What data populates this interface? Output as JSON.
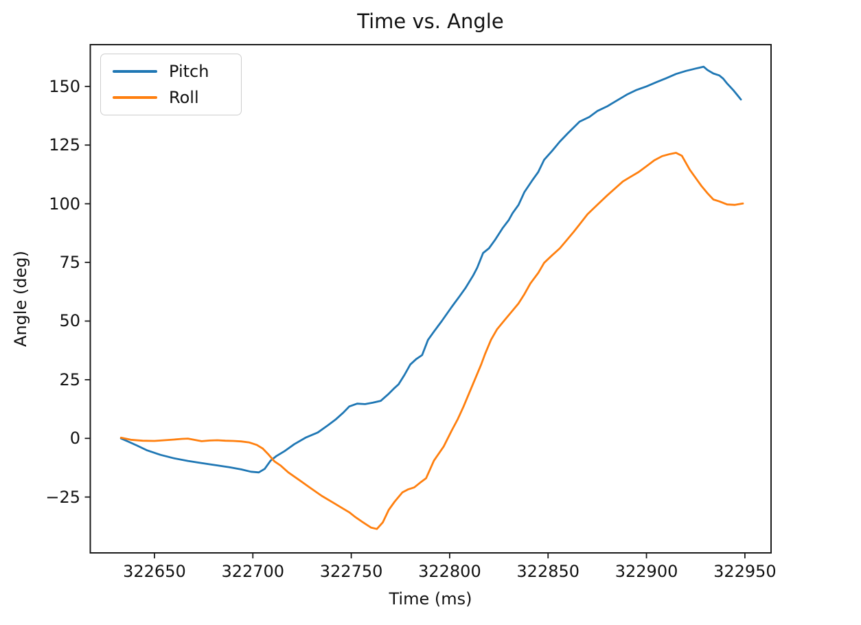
{
  "chart_data": {
    "type": "line",
    "title": "Time vs. Angle",
    "xlabel": "Time (ms)",
    "ylabel": "Angle (deg)",
    "xlim": [
      322617.4,
      322963.3
    ],
    "ylim": [
      -48.8,
      167.8
    ],
    "grid": false,
    "legend_position": "upper left",
    "colors": {
      "spine": "#1a1a1a",
      "background": "#ffffff",
      "pitch": "#1f77b4",
      "roll": "#ff7f0e"
    },
    "x_ticks": [
      {
        "value": 322650,
        "label": "322650"
      },
      {
        "value": 322700,
        "label": "322700"
      },
      {
        "value": 322750,
        "label": "322750"
      },
      {
        "value": 322800,
        "label": "322800"
      },
      {
        "value": 322850,
        "label": "322850"
      },
      {
        "value": 322900,
        "label": "322900"
      },
      {
        "value": 322950,
        "label": "322950"
      }
    ],
    "y_ticks": [
      {
        "value": -25,
        "label": "−25"
      },
      {
        "value": 0,
        "label": "0"
      },
      {
        "value": 25,
        "label": "25"
      },
      {
        "value": 50,
        "label": "50"
      },
      {
        "value": 75,
        "label": "75"
      },
      {
        "value": 100,
        "label": "100"
      },
      {
        "value": 125,
        "label": "125"
      },
      {
        "value": 150,
        "label": "150"
      }
    ],
    "series": [
      {
        "name": "Pitch",
        "color": "#1f77b4",
        "points": [
          [
            322633,
            0
          ],
          [
            322637,
            -1.5
          ],
          [
            322641,
            -3
          ],
          [
            322646,
            -5
          ],
          [
            322653,
            -7
          ],
          [
            322660,
            -8.5
          ],
          [
            322667,
            -9.6
          ],
          [
            322674,
            -10.5
          ],
          [
            322681,
            -11.4
          ],
          [
            322688,
            -12.3
          ],
          [
            322694,
            -13.2
          ],
          [
            322699,
            -14.2
          ],
          [
            322703,
            -14.5
          ],
          [
            322706,
            -13
          ],
          [
            322709,
            -9.5
          ],
          [
            322712,
            -7.5
          ],
          [
            322716,
            -5.5
          ],
          [
            322721,
            -2.5
          ],
          [
            322727,
            0.4
          ],
          [
            322733,
            2.5
          ],
          [
            322738,
            5.5
          ],
          [
            322742,
            8
          ],
          [
            322746,
            11
          ],
          [
            322749,
            13.6
          ],
          [
            322753,
            14.8
          ],
          [
            322757,
            14.6
          ],
          [
            322761,
            15.2
          ],
          [
            322765,
            16
          ],
          [
            322769,
            19
          ],
          [
            322772,
            21.5
          ],
          [
            322774,
            23
          ],
          [
            322777,
            27
          ],
          [
            322780,
            31.5
          ],
          [
            322783,
            33.8
          ],
          [
            322786,
            35.5
          ],
          [
            322789,
            42
          ],
          [
            322792,
            45.5
          ],
          [
            322796,
            50
          ],
          [
            322801,
            56
          ],
          [
            322805,
            60.5
          ],
          [
            322808,
            64
          ],
          [
            322812,
            69.5
          ],
          [
            322814,
            72.7
          ],
          [
            322817,
            79
          ],
          [
            322820,
            81
          ],
          [
            322823,
            84.5
          ],
          [
            322827,
            89.7
          ],
          [
            322830,
            93
          ],
          [
            322832,
            96
          ],
          [
            322835,
            99.5
          ],
          [
            322838,
            105
          ],
          [
            322842,
            110
          ],
          [
            322845,
            113.5
          ],
          [
            322848,
            118.7
          ],
          [
            322852,
            122.5
          ],
          [
            322856,
            126.5
          ],
          [
            322860,
            130
          ],
          [
            322863,
            132.5
          ],
          [
            322866,
            135
          ],
          [
            322871,
            137
          ],
          [
            322875,
            139.5
          ],
          [
            322880,
            141.5
          ],
          [
            322885,
            144
          ],
          [
            322890,
            146.5
          ],
          [
            322895,
            148.5
          ],
          [
            322900,
            150
          ],
          [
            322905,
            151.8
          ],
          [
            322910,
            153.5
          ],
          [
            322915,
            155.3
          ],
          [
            322920,
            156.6
          ],
          [
            322925,
            157.6
          ],
          [
            322929,
            158.4
          ],
          [
            322931,
            157
          ],
          [
            322934,
            155.5
          ],
          [
            322937,
            154.7
          ],
          [
            322939,
            153.3
          ],
          [
            322941,
            151.2
          ],
          [
            322944,
            148.5
          ],
          [
            322946,
            146.5
          ],
          [
            322948,
            144.4
          ]
        ]
      },
      {
        "name": "Roll",
        "color": "#ff7f0e",
        "points": [
          [
            322633,
            0.3
          ],
          [
            322638,
            -0.6
          ],
          [
            322644,
            -1
          ],
          [
            322650,
            -1.1
          ],
          [
            322655,
            -0.8
          ],
          [
            322660,
            -0.5
          ],
          [
            322664,
            -0.2
          ],
          [
            322667,
            -0.1
          ],
          [
            322670,
            -0.6
          ],
          [
            322674,
            -1.2
          ],
          [
            322678,
            -0.9
          ],
          [
            322682,
            -0.8
          ],
          [
            322686,
            -1
          ],
          [
            322690,
            -1.1
          ],
          [
            322694,
            -1.3
          ],
          [
            322698,
            -1.7
          ],
          [
            322702,
            -2.8
          ],
          [
            322705,
            -4.3
          ],
          [
            322708,
            -6.9
          ],
          [
            322711,
            -9.8
          ],
          [
            322714,
            -11.5
          ],
          [
            322718,
            -14.5
          ],
          [
            322724,
            -18
          ],
          [
            322729,
            -21
          ],
          [
            322735,
            -24.5
          ],
          [
            322741,
            -27.5
          ],
          [
            322746,
            -30
          ],
          [
            322749,
            -31.5
          ],
          [
            322752,
            -33.5
          ],
          [
            322756,
            -35.8
          ],
          [
            322760,
            -38
          ],
          [
            322763,
            -38.6
          ],
          [
            322766,
            -35.8
          ],
          [
            322769,
            -30.5
          ],
          [
            322772,
            -27
          ],
          [
            322776,
            -23
          ],
          [
            322779,
            -21.7
          ],
          [
            322782,
            -20.9
          ],
          [
            322785,
            -18.9
          ],
          [
            322788,
            -17
          ],
          [
            322792,
            -9.5
          ],
          [
            322797,
            -3.4
          ],
          [
            322801,
            3.3
          ],
          [
            322804,
            8
          ],
          [
            322807,
            13.5
          ],
          [
            322810,
            19.5
          ],
          [
            322813,
            25.5
          ],
          [
            322816,
            31.5
          ],
          [
            322818,
            36
          ],
          [
            322821,
            42
          ],
          [
            322824,
            46.4
          ],
          [
            322828,
            50.5
          ],
          [
            322832,
            54.5
          ],
          [
            322835,
            57.5
          ],
          [
            322838,
            61.5
          ],
          [
            322841,
            66
          ],
          [
            322845,
            70.5
          ],
          [
            322848,
            74.8
          ],
          [
            322852,
            78
          ],
          [
            322856,
            81
          ],
          [
            322860,
            85
          ],
          [
            322863,
            88
          ],
          [
            322866,
            91.2
          ],
          [
            322870,
            95.5
          ],
          [
            322875,
            99.5
          ],
          [
            322880,
            103.5
          ],
          [
            322884,
            106.5
          ],
          [
            322888,
            109.5
          ],
          [
            322892,
            111.5
          ],
          [
            322896,
            113.5
          ],
          [
            322900,
            116
          ],
          [
            322904,
            118.5
          ],
          [
            322908,
            120.3
          ],
          [
            322912,
            121.2
          ],
          [
            322915,
            121.7
          ],
          [
            322918,
            120.4
          ],
          [
            322922,
            114.5
          ],
          [
            322925,
            111
          ],
          [
            322928,
            107.5
          ],
          [
            322931,
            104.5
          ],
          [
            322934,
            101.8
          ],
          [
            322937,
            101
          ],
          [
            322941,
            99.7
          ],
          [
            322945,
            99.5
          ],
          [
            322949,
            100.1
          ]
        ]
      }
    ]
  }
}
